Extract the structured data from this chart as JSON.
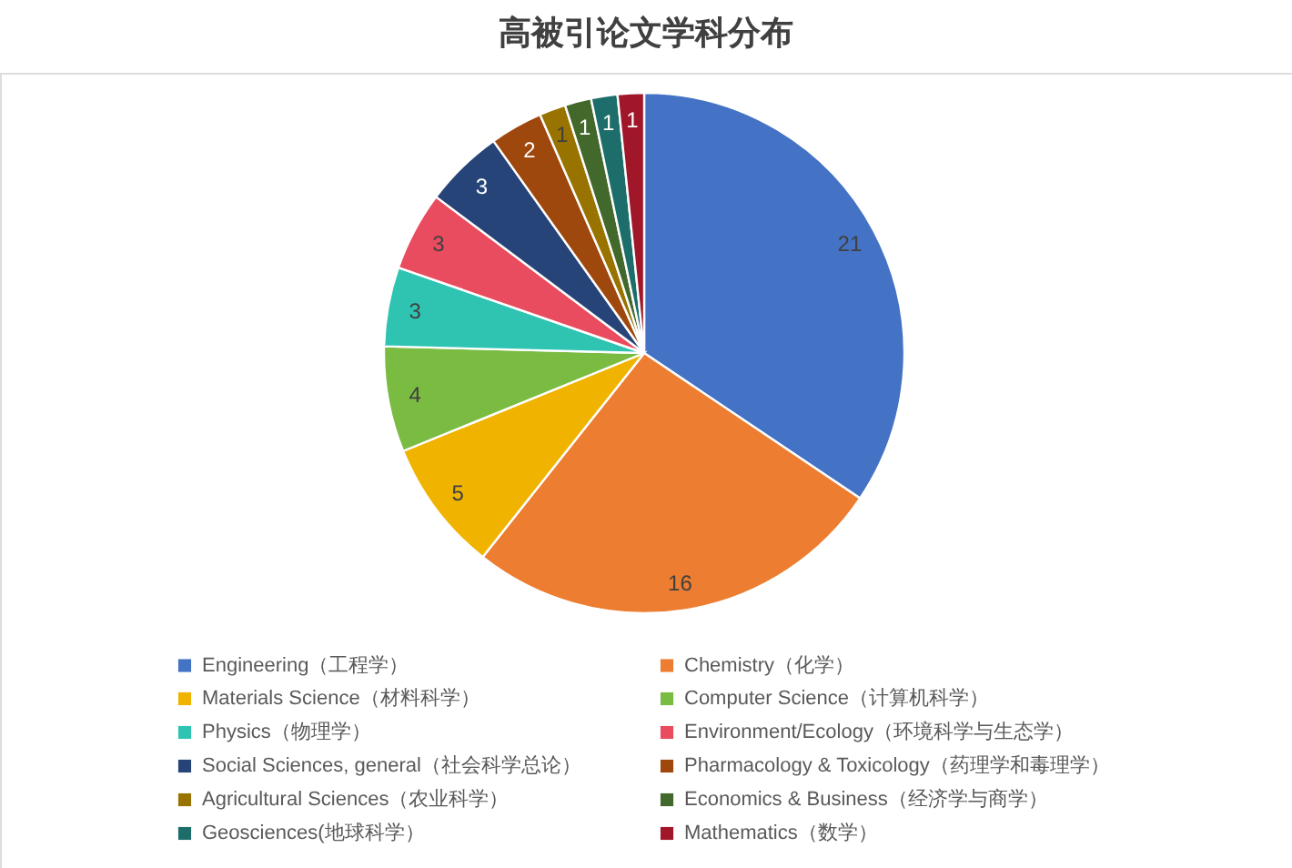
{
  "chart_data": {
    "type": "pie",
    "title": "高被引论文学科分布",
    "categories": [
      "Engineering（工程学）",
      "Chemistry（化学）",
      "Materials Science（材料科学）",
      "Computer Science（计算机科学）",
      "Physics（物理学）",
      "Environment/Ecology（环境科学与生态学）",
      "Social Sciences, general（社会科学总论）",
      "Pharmacology & Toxicology（药理学和毒理学）",
      "Agricultural Sciences（农业科学）",
      "Economics & Business（经济学与商学）",
      "Geosciences(地球科学）",
      "Mathematics（数学）"
    ],
    "values": [
      21,
      16,
      5,
      4,
      3,
      3,
      3,
      2,
      1,
      1,
      1,
      1
    ],
    "colors": [
      "#4472c4",
      "#ed7d31",
      "#f0b400",
      "#7abb42",
      "#2fc4b2",
      "#e84c5e",
      "#264478",
      "#9e480e",
      "#997300",
      "#43682b",
      "#1d6e6a",
      "#a0172a"
    ],
    "data_labels": true,
    "legend": "bottom"
  }
}
